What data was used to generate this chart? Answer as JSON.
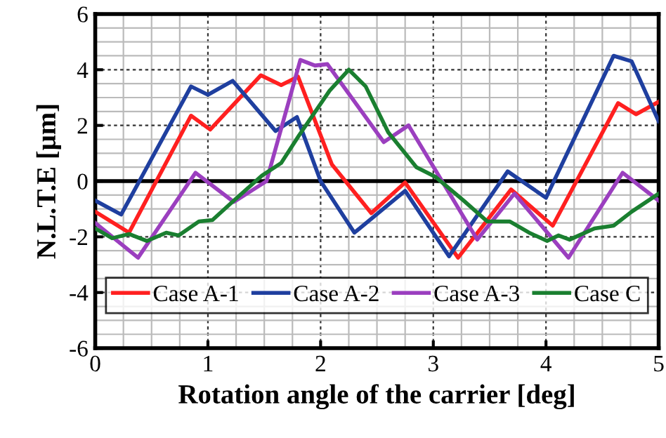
{
  "chart_data": {
    "type": "line",
    "xlabel": "Rotation angle of the carrier [deg]",
    "ylabel": "N.L.T.E [μm]",
    "xlim": [
      0,
      5
    ],
    "xticks": [
      0,
      1,
      2,
      3,
      4,
      5
    ],
    "ylim": [
      -6,
      6
    ],
    "yticks": [
      -6,
      -4,
      -2,
      0,
      2,
      4,
      6
    ],
    "grid": true,
    "legend": "bottom",
    "line_style": "solid",
    "ref_lines": [
      {
        "axis": "y",
        "value": 0,
        "color": "#000000"
      }
    ],
    "series": [
      {
        "name": "Case A-1",
        "color": "#ff2020",
        "x": [
          0,
          0.3,
          0.85,
          1.02,
          1.47,
          1.65,
          1.8,
          2.1,
          2.45,
          2.75,
          3.22,
          3.69,
          4.06,
          4.64,
          4.8,
          5
        ],
        "values": [
          -1.1,
          -1.85,
          2.35,
          1.85,
          3.8,
          3.45,
          3.75,
          0.6,
          -1.15,
          -0.05,
          -2.75,
          -0.3,
          -1.6,
          2.8,
          2.4,
          2.85
        ]
      },
      {
        "name": "Case A-2",
        "color": "#1f3f9f",
        "x": [
          0,
          0.23,
          0.85,
          1.0,
          1.22,
          1.6,
          1.79,
          2.0,
          2.3,
          2.75,
          3.14,
          3.66,
          4.0,
          4.6,
          4.76,
          5
        ],
        "values": [
          -0.7,
          -1.2,
          3.4,
          3.1,
          3.6,
          1.8,
          2.3,
          0.0,
          -1.85,
          -0.35,
          -2.7,
          0.35,
          -0.6,
          4.5,
          4.3,
          2.15
        ]
      },
      {
        "name": "Case A-3",
        "color": "#9b3fbf",
        "x": [
          0,
          0.38,
          0.89,
          1.23,
          1.52,
          1.82,
          1.95,
          2.06,
          2.56,
          2.78,
          3.39,
          3.72,
          4.2,
          4.68,
          5
        ],
        "values": [
          -1.5,
          -2.75,
          0.3,
          -0.75,
          0.0,
          4.35,
          4.15,
          4.2,
          1.4,
          2.0,
          -2.1,
          -0.45,
          -2.75,
          0.3,
          -0.7
        ]
      },
      {
        "name": "Case C",
        "color": "#1a7f30",
        "x": [
          0,
          0.15,
          0.3,
          0.46,
          0.63,
          0.74,
          0.92,
          1.04,
          1.23,
          1.48,
          1.65,
          1.81,
          2.08,
          2.25,
          2.4,
          2.6,
          2.85,
          3.02,
          3.27,
          3.48,
          3.68,
          3.85,
          4.01,
          4.11,
          4.21,
          4.43,
          4.6,
          4.76,
          5
        ],
        "values": [
          -1.7,
          -2.05,
          -1.9,
          -2.15,
          -1.85,
          -1.95,
          -1.45,
          -1.4,
          -0.7,
          0.2,
          0.65,
          1.65,
          3.25,
          4.0,
          3.4,
          1.75,
          0.5,
          0.15,
          -0.7,
          -1.45,
          -1.45,
          -1.85,
          -2.15,
          -1.95,
          -2.1,
          -1.7,
          -1.6,
          -1.1,
          -0.45
        ]
      }
    ]
  }
}
